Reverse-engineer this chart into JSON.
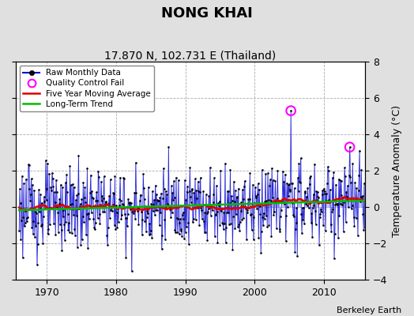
{
  "title": "NONG KHAI",
  "subtitle": "17.870 N, 102.731 E (Thailand)",
  "ylabel": "Temperature Anomaly (°C)",
  "credit": "Berkeley Earth",
  "ylim": [
    -4,
    8
  ],
  "yticks": [
    -4,
    -2,
    0,
    2,
    4,
    6,
    8
  ],
  "xlim": [
    1965.5,
    2016.0
  ],
  "xticks": [
    1970,
    1980,
    1990,
    2000,
    2010
  ],
  "bg_color": "#e0e0e0",
  "plot_bg_color": "#ffffff",
  "line_color": "#0000cc",
  "fill_color": "#8080ff",
  "dot_color": "#000000",
  "ma_color": "#dd0000",
  "trend_color": "#00bb00",
  "qc_color": "#ff00ff",
  "title_fontsize": 13,
  "subtitle_fontsize": 10,
  "label_fontsize": 9,
  "tick_fontsize": 9,
  "qc_points_x": [
    2005.25,
    2013.75
  ],
  "qc_points_y": [
    5.3,
    3.3
  ]
}
